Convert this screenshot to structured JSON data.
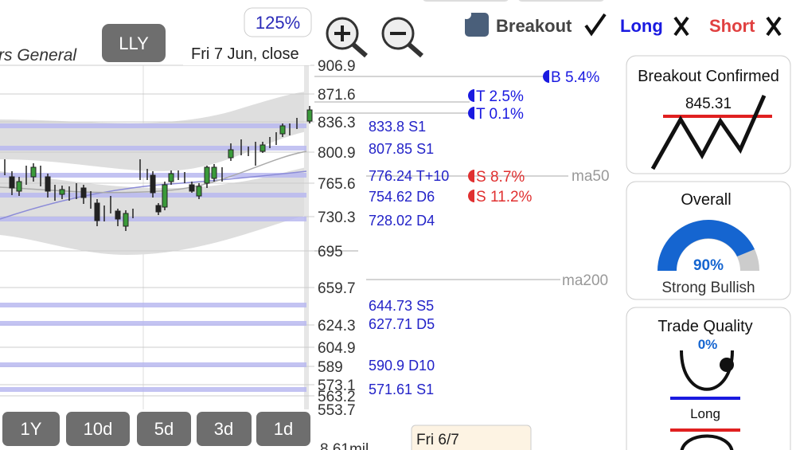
{
  "header": {
    "title": "rs General",
    "symbol": "LLY",
    "zoom": "125%",
    "date": "Fri 7 Jun, close"
  },
  "legend": {
    "breakout": "Breakout",
    "long": "Long",
    "short": "Short"
  },
  "price_axis": [
    "906.9",
    "871.6",
    "836.3",
    "800.9",
    "765.6",
    "730.3",
    "695",
    "659.7",
    "624.3",
    "604.9",
    "589",
    "573.1",
    "563.2",
    "553.7"
  ],
  "volume_label": "8.61mil",
  "levels": [
    {
      "price": "833.8",
      "tag": "S1"
    },
    {
      "price": "807.85",
      "tag": "S1"
    },
    {
      "price": "776.24",
      "tag": "T+10"
    },
    {
      "price": "754.62",
      "tag": "D6"
    },
    {
      "price": "728.02",
      "tag": "D4"
    },
    {
      "price": "644.73",
      "tag": "S5"
    },
    {
      "price": "627.71",
      "tag": "D5"
    },
    {
      "price": "590.9",
      "tag": "D10"
    },
    {
      "price": "571.61",
      "tag": "S1"
    }
  ],
  "targets": [
    {
      "side": "B",
      "pct": "5.4%"
    },
    {
      "side": "T",
      "pct": "2.5%"
    },
    {
      "side": "T",
      "pct": "0.1%"
    },
    {
      "side": "S",
      "pct": "8.7%"
    },
    {
      "side": "S",
      "pct": "11.2%"
    }
  ],
  "moving_averages": [
    "ma50",
    "ma200"
  ],
  "periods": [
    "1Y",
    "10d",
    "5d",
    "3d",
    "1d"
  ],
  "tooltip": "Fri 6/7",
  "cards": {
    "breakout": {
      "title": "Breakout Confirmed",
      "price": "845.31"
    },
    "overall": {
      "title": "Overall",
      "score": "90%",
      "verdict": "Strong Bullish"
    },
    "trade_quality": {
      "title": "Trade Quality",
      "score": "0%",
      "side": "Long"
    }
  }
}
